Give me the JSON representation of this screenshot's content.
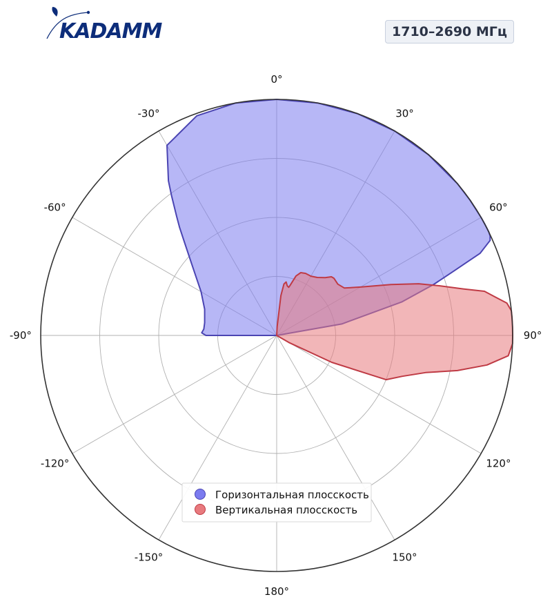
{
  "header": {
    "logo_text": "KADAMM",
    "frequency_badge": "1710–2690 МГц"
  },
  "colors": {
    "brand": "#0d2d7a",
    "horizontal_fill": "#7b7bef",
    "horizontal_stroke": "#4a44b2",
    "vertical_fill": "#e87a7e",
    "vertical_stroke": "#bf3a44",
    "grid": "#b0b0b0",
    "outer_circle": "#333333"
  },
  "chart_data": {
    "type": "polar-area",
    "theta_zero": "top",
    "theta_direction": "clockwise",
    "r_range": [
      0,
      1
    ],
    "r_grid": [
      0.25,
      0.5,
      0.75,
      1.0
    ],
    "angle_ticks": [
      {
        "value": 0,
        "label": "0°"
      },
      {
        "value": 30,
        "label": "30°"
      },
      {
        "value": 60,
        "label": "60°"
      },
      {
        "value": 90,
        "label": "90°"
      },
      {
        "value": 120,
        "label": "120°"
      },
      {
        "value": 150,
        "label": "150°"
      },
      {
        "value": 180,
        "label": "180°"
      },
      {
        "value": -150,
        "label": "-150°"
      },
      {
        "value": -120,
        "label": "-120°"
      },
      {
        "value": -90,
        "label": "-90°"
      },
      {
        "value": -60,
        "label": "-60°"
      },
      {
        "value": -30,
        "label": "-30°"
      }
    ],
    "legend_position": "bottom-center",
    "series": [
      {
        "name": "Горизонтальная плосскость",
        "key": "horizontal",
        "theta": [
          -90,
          -88,
          -85,
          -80,
          -70,
          -60,
          -50,
          -45,
          -42,
          -40,
          -37,
          -35,
          -30,
          -20,
          -10,
          0,
          10,
          20,
          30,
          40,
          50,
          55,
          60,
          62,
          64,
          65,
          66,
          68,
          70,
          72,
          75,
          80,
          90
        ],
        "r": [
          0.3,
          0.318,
          0.31,
          0.31,
          0.325,
          0.37,
          0.47,
          0.55,
          0.615,
          0.66,
          0.74,
          0.8,
          0.93,
          0.99,
          1.0,
          1.0,
          1.0,
          1.0,
          1.0,
          1.0,
          1.0,
          1.0,
          1.0,
          1.0,
          1.0,
          0.998,
          0.99,
          0.93,
          0.8,
          0.7,
          0.55,
          0.28,
          0
        ]
      },
      {
        "name": "Вертикальная плосскость",
        "key": "vertical",
        "theta": [
          0,
          3,
          6,
          8,
          10,
          12,
          14,
          15,
          18,
          21,
          25,
          30,
          35,
          40,
          43,
          45,
          50,
          55,
          60,
          66,
          70,
          73,
          76,
          78,
          80,
          82,
          84,
          86,
          88,
          90,
          92,
          95,
          98,
          101,
          104,
          108,
          112,
          116,
          120,
          125
        ],
        "r": [
          0,
          0.038,
          0.17,
          0.22,
          0.23,
          0.215,
          0.21,
          0.22,
          0.265,
          0.285,
          0.29,
          0.29,
          0.3,
          0.32,
          0.34,
          0.343,
          0.338,
          0.35,
          0.41,
          0.53,
          0.64,
          0.72,
          0.815,
          0.9,
          0.94,
          0.985,
          1.0,
          1.0,
          1.0,
          1.0,
          1.0,
          0.985,
          0.9,
          0.78,
          0.65,
          0.56,
          0.5,
          0.26,
          0.06,
          0
        ]
      }
    ]
  }
}
